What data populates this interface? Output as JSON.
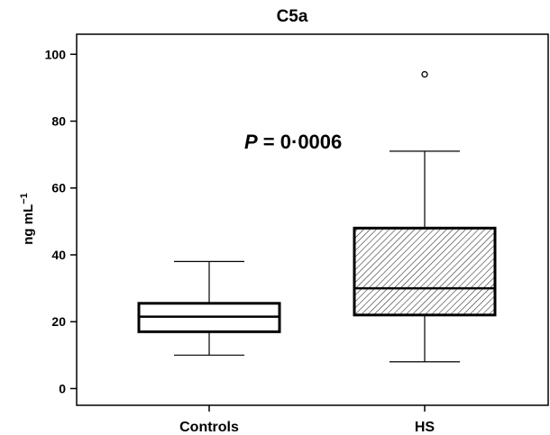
{
  "chart_data": {
    "type": "box",
    "title": "C5a",
    "xlabel": "",
    "ylabel": "ng mL",
    "ylabel_superscript": "−1",
    "ylim": [
      -5,
      106
    ],
    "yticks": [
      0,
      20,
      40,
      60,
      80,
      100
    ],
    "categories": [
      "Controls",
      "HS"
    ],
    "boxes": [
      {
        "category": "Controls",
        "whisker_low": 10,
        "q1": 17,
        "median": 21.5,
        "q3": 25.5,
        "whisker_high": 38,
        "outliers": [],
        "fill": "none"
      },
      {
        "category": "HS",
        "whisker_low": 8,
        "q1": 22,
        "median": 30,
        "q3": 48,
        "whisker_high": 71,
        "outliers": [
          94
        ],
        "fill": "hatched"
      }
    ],
    "annotation": {
      "italic_part": "P",
      "rest": " = 0·0006"
    },
    "grid": false,
    "legend": false
  },
  "colors": {
    "line": "#000000",
    "hatch": "#333333",
    "background": "#ffffff"
  }
}
